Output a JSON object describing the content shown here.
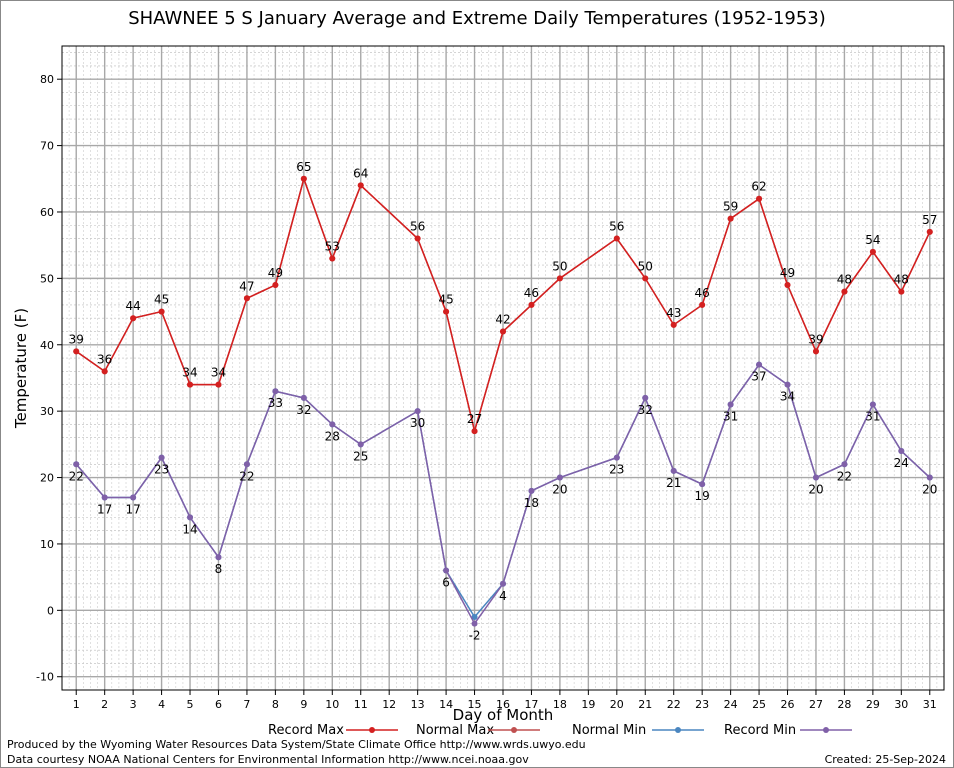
{
  "chart_data": {
    "type": "line",
    "title": "SHAWNEE 5 S January Average and Extreme Daily Temperatures (1952-1953)",
    "xlabel": "Day of Month",
    "ylabel": "Temperature (F)",
    "xlim": [
      0.5,
      31.5
    ],
    "ylim": [
      -12,
      85
    ],
    "yticks": [
      -10,
      0,
      10,
      20,
      30,
      40,
      50,
      60,
      70,
      80
    ],
    "x": [
      1,
      2,
      3,
      4,
      5,
      6,
      7,
      8,
      9,
      10,
      11,
      12,
      13,
      14,
      15,
      16,
      17,
      18,
      19,
      20,
      21,
      22,
      23,
      24,
      25,
      26,
      27,
      28,
      29,
      30,
      31
    ],
    "grid": true,
    "legend_position": "bottom",
    "series": [
      {
        "name": "Record Max",
        "color": "#d42020",
        "points": [
          [
            1,
            39
          ],
          [
            2,
            36
          ],
          [
            3,
            44
          ],
          [
            4,
            45
          ],
          [
            5,
            34
          ],
          [
            6,
            34
          ],
          [
            7,
            47
          ],
          [
            8,
            49
          ],
          [
            9,
            65
          ],
          [
            10,
            53
          ],
          [
            11,
            64
          ],
          [
            13,
            56
          ],
          [
            14,
            45
          ],
          [
            15,
            27
          ],
          [
            16,
            42
          ],
          [
            17,
            46
          ],
          [
            18,
            50
          ],
          [
            20,
            56
          ],
          [
            21,
            50
          ],
          [
            22,
            43
          ],
          [
            23,
            46
          ],
          [
            24,
            59
          ],
          [
            25,
            62
          ],
          [
            26,
            49
          ],
          [
            27,
            39
          ],
          [
            28,
            48
          ],
          [
            29,
            54
          ],
          [
            30,
            48
          ],
          [
            31,
            57
          ]
        ],
        "labeled": true
      },
      {
        "name": "Normal Max",
        "color": "#c05050",
        "points": [
          [
            1,
            39
          ],
          [
            2,
            36
          ],
          [
            3,
            44
          ],
          [
            4,
            45
          ],
          [
            5,
            34
          ],
          [
            6,
            34
          ],
          [
            7,
            47
          ],
          [
            8,
            49
          ],
          [
            9,
            65
          ],
          [
            10,
            53
          ],
          [
            11,
            64
          ],
          [
            13,
            56
          ],
          [
            14,
            45
          ],
          [
            15,
            27
          ],
          [
            16,
            42
          ],
          [
            17,
            46
          ],
          [
            18,
            50
          ],
          [
            20,
            56
          ],
          [
            21,
            50
          ],
          [
            22,
            43
          ],
          [
            23,
            46
          ],
          [
            24,
            59
          ],
          [
            25,
            62
          ],
          [
            26,
            49
          ],
          [
            27,
            39
          ],
          [
            28,
            48
          ],
          [
            29,
            54
          ],
          [
            30,
            48
          ],
          [
            31,
            57
          ]
        ],
        "labeled": false
      },
      {
        "name": "Normal Min",
        "color": "#4a86c0",
        "points": [
          [
            1,
            22
          ],
          [
            2,
            17
          ],
          [
            3,
            17
          ],
          [
            4,
            23
          ],
          [
            5,
            14
          ],
          [
            6,
            8
          ],
          [
            7,
            22
          ],
          [
            8,
            33
          ],
          [
            9,
            32
          ],
          [
            10,
            28
          ],
          [
            11,
            25
          ],
          [
            13,
            30
          ],
          [
            14,
            6
          ],
          [
            15,
            -1
          ],
          [
            16,
            4
          ],
          [
            17,
            18
          ],
          [
            18,
            20
          ],
          [
            20,
            23
          ],
          [
            21,
            32
          ],
          [
            22,
            21
          ],
          [
            23,
            19
          ],
          [
            24,
            31
          ],
          [
            25,
            37
          ],
          [
            26,
            34
          ],
          [
            27,
            20
          ],
          [
            28,
            22
          ],
          [
            29,
            31
          ],
          [
            30,
            24
          ],
          [
            31,
            20
          ]
        ],
        "labeled": false
      },
      {
        "name": "Record Min",
        "color": "#8060a8",
        "points": [
          [
            1,
            22
          ],
          [
            2,
            17
          ],
          [
            3,
            17
          ],
          [
            4,
            23
          ],
          [
            5,
            14
          ],
          [
            6,
            8
          ],
          [
            7,
            22
          ],
          [
            8,
            33
          ],
          [
            9,
            32
          ],
          [
            10,
            28
          ],
          [
            11,
            25
          ],
          [
            13,
            30
          ],
          [
            14,
            6
          ],
          [
            15,
            -2
          ],
          [
            16,
            4
          ],
          [
            17,
            18
          ],
          [
            18,
            20
          ],
          [
            20,
            23
          ],
          [
            21,
            32
          ],
          [
            22,
            21
          ],
          [
            23,
            19
          ],
          [
            24,
            31
          ],
          [
            25,
            37
          ],
          [
            26,
            34
          ],
          [
            27,
            20
          ],
          [
            28,
            22
          ],
          [
            29,
            31
          ],
          [
            30,
            24
          ],
          [
            31,
            20
          ]
        ],
        "labeled": true
      }
    ]
  },
  "footer": {
    "line1": "Produced by the Wyoming Water Resources Data System/State Climate Office http://www.wrds.uwyo.edu",
    "line2": "Data courtesy NOAA National Centers for Environmental Information http://www.ncei.noaa.gov",
    "created": "Created:  25-Sep-2024"
  }
}
